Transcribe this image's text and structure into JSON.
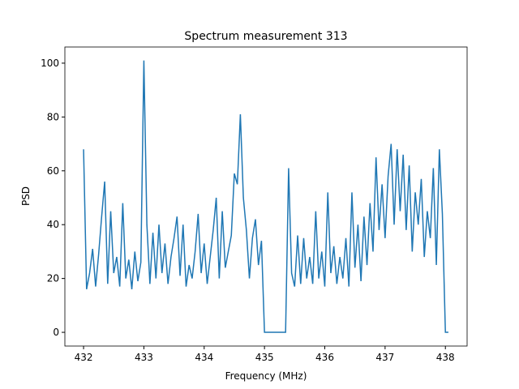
{
  "chart_data": {
    "type": "line",
    "title": "Spectrum measurement 313",
    "xlabel": "Frequency (MHz)",
    "ylabel": "PSD",
    "color": "#1f77b4",
    "x": [
      432.0,
      432.05,
      432.1,
      432.15,
      432.2,
      432.25,
      432.3,
      432.35,
      432.4,
      432.45,
      432.5,
      432.55,
      432.6,
      432.65,
      432.7,
      432.75,
      432.8,
      432.85,
      432.9,
      432.95,
      433.0,
      433.05,
      433.1,
      433.15,
      433.2,
      433.25,
      433.3,
      433.35,
      433.4,
      433.45,
      433.5,
      433.55,
      433.6,
      433.65,
      433.7,
      433.75,
      433.8,
      433.85,
      433.9,
      433.95,
      434.0,
      434.05,
      434.1,
      434.15,
      434.2,
      434.25,
      434.3,
      434.35,
      434.4,
      434.45,
      434.5,
      434.55,
      434.6,
      434.65,
      434.7,
      434.75,
      434.8,
      434.85,
      434.9,
      434.95,
      435.0,
      435.05,
      435.1,
      435.15,
      435.2,
      435.25,
      435.3,
      435.35,
      435.4,
      435.45,
      435.5,
      435.55,
      435.6,
      435.65,
      435.7,
      435.75,
      435.8,
      435.85,
      435.9,
      435.95,
      436.0,
      436.05,
      436.1,
      436.15,
      436.2,
      436.25,
      436.3,
      436.35,
      436.4,
      436.45,
      436.5,
      436.55,
      436.6,
      436.65,
      436.7,
      436.75,
      436.8,
      436.85,
      436.9,
      436.95,
      437.0,
      437.05,
      437.1,
      437.15,
      437.2,
      437.25,
      437.3,
      437.35,
      437.4,
      437.45,
      437.5,
      437.55,
      437.6,
      437.65,
      437.7,
      437.75,
      437.8,
      437.85,
      437.9,
      437.95,
      438.0,
      438.05
    ],
    "values": [
      68,
      16,
      22,
      31,
      17,
      29,
      43,
      56,
      18,
      45,
      22,
      28,
      17,
      48,
      20,
      27,
      16,
      30,
      19,
      26,
      101,
      40,
      18,
      37,
      20,
      40,
      22,
      33,
      18,
      28,
      35,
      43,
      21,
      40,
      17,
      25,
      20,
      30,
      44,
      22,
      33,
      18,
      28,
      38,
      50,
      20,
      45,
      24,
      30,
      36,
      59,
      55,
      81,
      50,
      38,
      20,
      35,
      42,
      25,
      34,
      0,
      0,
      0,
      0,
      0,
      0,
      0,
      0,
      61,
      22,
      17,
      36,
      18,
      35,
      20,
      28,
      18,
      45,
      20,
      30,
      17,
      52,
      22,
      32,
      18,
      28,
      20,
      35,
      17,
      52,
      24,
      40,
      19,
      43,
      25,
      48,
      30,
      65,
      38,
      55,
      35,
      58,
      70,
      40,
      68,
      45,
      66,
      38,
      62,
      30,
      52,
      40,
      57,
      28,
      45,
      35,
      61,
      25,
      68,
      44,
      0,
      0
    ],
    "xlim": [
      431.69,
      438.36
    ],
    "ylim": [
      -5.1,
      106
    ],
    "xticks": [
      432,
      433,
      434,
      435,
      436,
      437,
      438
    ],
    "yticks": [
      0,
      20,
      40,
      60,
      80,
      100
    ]
  }
}
